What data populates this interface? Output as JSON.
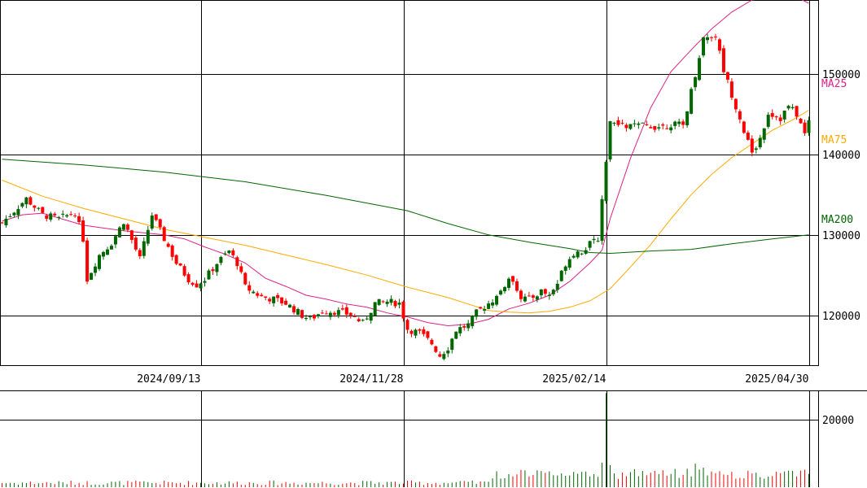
{
  "chart_data": {
    "type": "candlestick",
    "price_axis": {
      "ylim": [
        113800,
        159200
      ],
      "ticks": [
        120000,
        130000,
        140000,
        150000
      ],
      "tick_labels": [
        "120000",
        "130000",
        "140000",
        "150000"
      ]
    },
    "volume_axis": {
      "ylim": [
        0,
        28800
      ],
      "ticks": [
        20000
      ],
      "tick_labels": [
        "20000"
      ]
    },
    "x_labels": [
      {
        "label": "2024/09/13",
        "index": 49
      },
      {
        "label": "2024/11/28",
        "index": 99
      },
      {
        "label": "2025/02/14",
        "index": 149
      },
      {
        "label": "2025/04/30",
        "index": 199
      }
    ],
    "n_bars": 200,
    "bars": [],
    "series": [
      {
        "name": "MA25",
        "color": "#dd2288",
        "label_value": 146000,
        "points": [
          [
            0,
            131700
          ],
          [
            5,
            132500
          ],
          [
            10,
            132700
          ],
          [
            20,
            131200
          ],
          [
            30,
            130500
          ],
          [
            40,
            130000
          ],
          [
            45,
            129500
          ],
          [
            50,
            128500
          ],
          [
            55,
            127600
          ],
          [
            60,
            126500
          ],
          [
            65,
            124600
          ],
          [
            70,
            123600
          ],
          [
            75,
            122500
          ],
          [
            80,
            122000
          ],
          [
            85,
            121400
          ],
          [
            90,
            121000
          ],
          [
            95,
            120300
          ],
          [
            100,
            119800
          ],
          [
            105,
            119100
          ],
          [
            110,
            118700
          ],
          [
            115,
            118900
          ],
          [
            120,
            119500
          ],
          [
            125,
            120800
          ],
          [
            130,
            121500
          ],
          [
            135,
            122500
          ],
          [
            140,
            124200
          ],
          [
            145,
            126500
          ],
          [
            148,
            128100
          ],
          [
            150,
            132000
          ],
          [
            155,
            139500
          ],
          [
            160,
            145800
          ],
          [
            165,
            150300
          ],
          [
            170,
            153000
          ],
          [
            175,
            155600
          ],
          [
            180,
            157700
          ],
          [
            185,
            159200
          ],
          [
            190,
            159600
          ],
          [
            195,
            159800
          ],
          [
            199,
            158800
          ]
        ]
      },
      {
        "name": "MA75",
        "color": "#ffaa00",
        "label_value": 140000,
        "points": [
          [
            0,
            136800
          ],
          [
            10,
            134800
          ],
          [
            20,
            133300
          ],
          [
            30,
            132000
          ],
          [
            40,
            130700
          ],
          [
            50,
            129700
          ],
          [
            60,
            128700
          ],
          [
            70,
            127500
          ],
          [
            80,
            126300
          ],
          [
            90,
            125000
          ],
          [
            100,
            123500
          ],
          [
            110,
            122200
          ],
          [
            115,
            121400
          ],
          [
            120,
            120600
          ],
          [
            125,
            120400
          ],
          [
            130,
            120300
          ],
          [
            135,
            120500
          ],
          [
            140,
            121000
          ],
          [
            145,
            121800
          ],
          [
            150,
            123300
          ],
          [
            155,
            126000
          ],
          [
            160,
            128800
          ],
          [
            165,
            132000
          ],
          [
            170,
            135000
          ],
          [
            175,
            137500
          ],
          [
            180,
            139600
          ],
          [
            185,
            141300
          ],
          [
            190,
            143000
          ],
          [
            195,
            144300
          ],
          [
            199,
            145500
          ]
        ]
      },
      {
        "name": "MA200",
        "color": "#006600",
        "label_value": 130000,
        "points": [
          [
            0,
            139400
          ],
          [
            20,
            138700
          ],
          [
            40,
            137800
          ],
          [
            60,
            136600
          ],
          [
            80,
            134900
          ],
          [
            100,
            133000
          ],
          [
            110,
            131400
          ],
          [
            120,
            130000
          ],
          [
            130,
            129100
          ],
          [
            140,
            128300
          ],
          [
            145,
            127800
          ],
          [
            150,
            127700
          ],
          [
            160,
            128000
          ],
          [
            170,
            128200
          ],
          [
            180,
            128900
          ],
          [
            190,
            129500
          ],
          [
            199,
            130000
          ]
        ]
      }
    ]
  },
  "labels": {
    "ma25": "MA25",
    "ma75": "MA75",
    "ma200": "MA200"
  },
  "colors": {
    "up": "#006600",
    "down": "#ff0000",
    "grid": "#000000",
    "background": "#ffffff"
  }
}
